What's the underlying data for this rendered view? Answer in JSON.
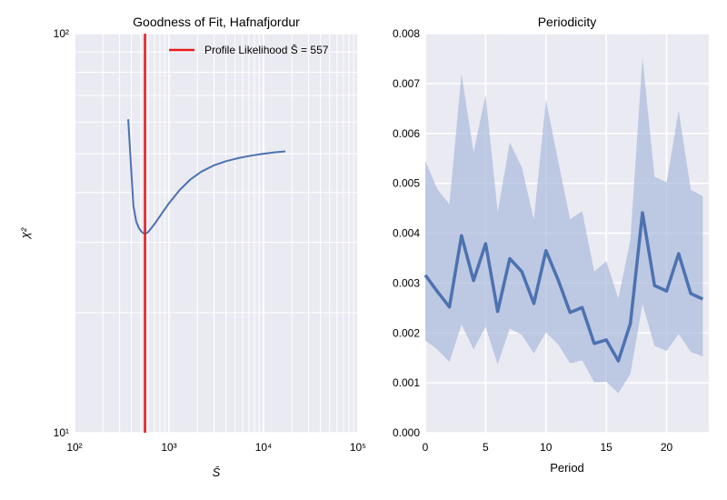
{
  "chart_data": [
    {
      "type": "line",
      "title": "Goodness of Fit, Hafnafjordur",
      "xlabel": "S̄",
      "ylabel": "χ²",
      "x_scale": "log",
      "y_scale": "log",
      "xlim": [
        100,
        100000
      ],
      "ylim": [
        10,
        100
      ],
      "x_ticks": [
        100,
        1000,
        10000,
        100000
      ],
      "x_tick_labels": [
        "10²",
        "10³",
        "10⁴",
        "10⁵"
      ],
      "y_ticks": [
        10,
        100
      ],
      "y_tick_labels": [
        "10¹",
        "10²"
      ],
      "grid": true,
      "legend_position": "top-right",
      "series": [
        {
          "name": "",
          "color": "#4c72b0",
          "x": [
            370,
            395,
            420,
            450,
            480,
            510,
            540,
            557,
            600,
            700,
            850,
            1000,
            1300,
            1700,
            2200,
            3000,
            4000,
            5500,
            7500,
            10000,
            13000,
            17000
          ],
          "y": [
            61,
            47,
            37,
            33.8,
            32.6,
            31.9,
            31.6,
            31.5,
            31.8,
            33.3,
            35.6,
            37.6,
            40.6,
            43.2,
            45.1,
            46.8,
            47.9,
            48.8,
            49.5,
            50.0,
            50.4,
            50.7
          ]
        }
      ],
      "vline": {
        "x": 557,
        "label": "Profile Likelihood S̄ = 557",
        "color": "#e81b1b"
      }
    },
    {
      "type": "line",
      "title": "Periodicity",
      "xlabel": "Period",
      "ylabel": "",
      "xlim": [
        0,
        23.5
      ],
      "ylim": [
        0,
        0.008
      ],
      "x_ticks": [
        0,
        5,
        10,
        15,
        20
      ],
      "y_ticks": [
        0.0,
        0.001,
        0.002,
        0.003,
        0.004,
        0.005,
        0.006,
        0.007,
        0.008
      ],
      "y_tick_labels": [
        "0.000",
        "0.001",
        "0.002",
        "0.003",
        "0.004",
        "0.005",
        "0.006",
        "0.007",
        "0.008"
      ],
      "grid": true,
      "x": [
        0,
        1,
        2,
        3,
        4,
        5,
        6,
        7,
        8,
        9,
        10,
        11,
        12,
        13,
        14,
        15,
        16,
        17,
        18,
        19,
        20,
        21,
        22,
        23
      ],
      "series": [
        {
          "name": "",
          "color": "#4c72b0",
          "values": [
            0.00316,
            0.00283,
            0.00252,
            0.00395,
            0.00305,
            0.00379,
            0.00243,
            0.00349,
            0.00323,
            0.00259,
            0.00365,
            0.00307,
            0.00241,
            0.00251,
            0.00179,
            0.00186,
            0.00144,
            0.00219,
            0.00441,
            0.00295,
            0.00284,
            0.00359,
            0.00279,
            0.00268
          ]
        }
      ],
      "band": {
        "color": "#a4b6da",
        "upper": [
          0.00545,
          0.00488,
          0.00458,
          0.0072,
          0.00562,
          0.00677,
          0.00442,
          0.00582,
          0.00532,
          0.00427,
          0.00667,
          0.00546,
          0.00428,
          0.00444,
          0.00323,
          0.00344,
          0.00269,
          0.00387,
          0.00752,
          0.00513,
          0.00502,
          0.00646,
          0.00487,
          0.00474
        ],
        "lower": [
          0.00185,
          0.00167,
          0.00142,
          0.00217,
          0.00167,
          0.00212,
          0.00137,
          0.00209,
          0.00196,
          0.00159,
          0.00201,
          0.00178,
          0.00139,
          0.00145,
          0.00101,
          0.00102,
          0.00079,
          0.00118,
          0.00258,
          0.00174,
          0.00164,
          0.00198,
          0.00162,
          0.00153
        ]
      }
    }
  ]
}
